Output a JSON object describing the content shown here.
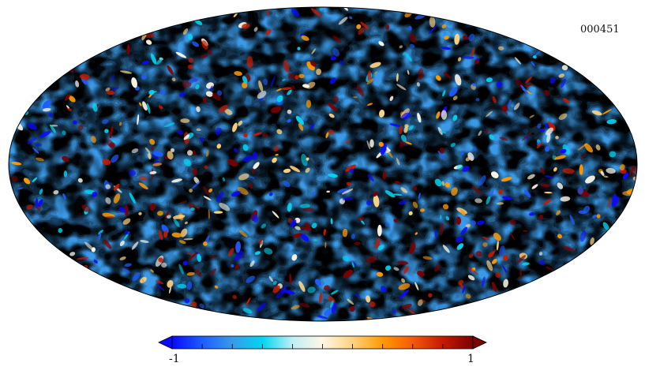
{
  "map": {
    "projection": "mollweide",
    "map_id": "000451"
  },
  "colorbar": {
    "min_label": "-1",
    "max_label": "1",
    "stops": [
      "#0a0aff",
      "#1d5cff",
      "#3a9ae8",
      "#00d6f0",
      "#bfeef5",
      "#fff7e6",
      "#ffd27f",
      "#ff9a00",
      "#f35a0c",
      "#c41a00",
      "#7a0000"
    ]
  }
}
